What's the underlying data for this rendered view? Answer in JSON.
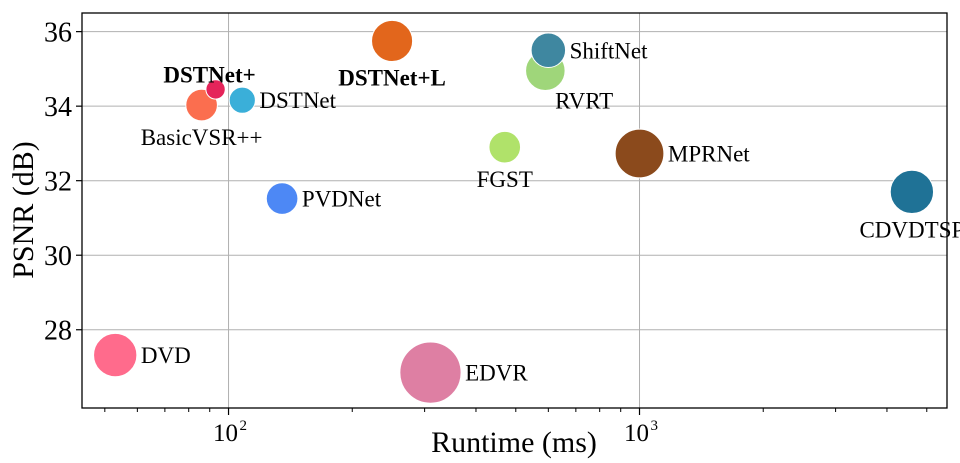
{
  "chart_data": {
    "type": "scatter",
    "title": "",
    "xlabel": "Runtime (ms)",
    "ylabel": "PSNR (dB)",
    "xscale": "log",
    "xlim": [
      44,
      5600
    ],
    "ylim": [
      25.9,
      36.5
    ],
    "grid": true,
    "x_major_ticks": [
      {
        "value": 100,
        "label": "10",
        "exp": "2"
      },
      {
        "value": 1000,
        "label": "10",
        "exp": "3"
      }
    ],
    "y_ticks": [
      {
        "value": 28,
        "label": "28"
      },
      {
        "value": 30,
        "label": "30"
      },
      {
        "value": 32,
        "label": "32"
      },
      {
        "value": 34,
        "label": "34"
      },
      {
        "value": 36,
        "label": "36"
      }
    ],
    "points": [
      {
        "name": "DVD",
        "x": 53,
        "y": 27.32,
        "size": 3,
        "color": "#ff6b8c",
        "bold": false,
        "label_pos": "right"
      },
      {
        "name": "EDVR",
        "x": 310,
        "y": 26.85,
        "size": 6,
        "color": "#de7fa3",
        "bold": false,
        "label_pos": "right"
      },
      {
        "name": "PVDNet",
        "x": 135,
        "y": 31.52,
        "size": 1.6,
        "color": "#4d88f5",
        "bold": false,
        "label_pos": "right"
      },
      {
        "name": "BasicVSR++",
        "x": 86,
        "y": 34.03,
        "size": 1.6,
        "color": "#fb6e4f",
        "bold": false,
        "label_pos": "below"
      },
      {
        "name": "DSTNet+",
        "x": 93,
        "y": 34.45,
        "size": 0.6,
        "color": "#e5245a",
        "bold": true,
        "label_pos": "above"
      },
      {
        "name": "DSTNet",
        "x": 108,
        "y": 34.16,
        "size": 1.1,
        "color": "#3aafd9",
        "bold": false,
        "label_pos": "right"
      },
      {
        "name": "DSTNet+L",
        "x": 250,
        "y": 35.75,
        "size": 2.7,
        "color": "#e2661c",
        "bold": true,
        "label_pos": "below"
      },
      {
        "name": "FGST",
        "x": 470,
        "y": 32.9,
        "size": 1.6,
        "color": "#b0e26a",
        "bold": false,
        "label_pos": "below"
      },
      {
        "name": "ShiftNet",
        "x": 600,
        "y": 35.5,
        "size": 1.9,
        "color": "#3f87a0",
        "bold": false,
        "label_pos": "right"
      },
      {
        "name": "RVRT",
        "x": 590,
        "y": 34.95,
        "size": 2.5,
        "color": "#9fd67a",
        "bold": false,
        "label_pos": "below-right"
      },
      {
        "name": "MPRNet",
        "x": 1000,
        "y": 32.73,
        "size": 3.8,
        "color": "#8b4a1c",
        "bold": false,
        "label_pos": "right"
      },
      {
        "name": "CDVDTSP",
        "x": 4600,
        "y": 31.7,
        "size": 3.0,
        "color": "#1f7296",
        "bold": false,
        "label_pos": "below"
      }
    ]
  }
}
